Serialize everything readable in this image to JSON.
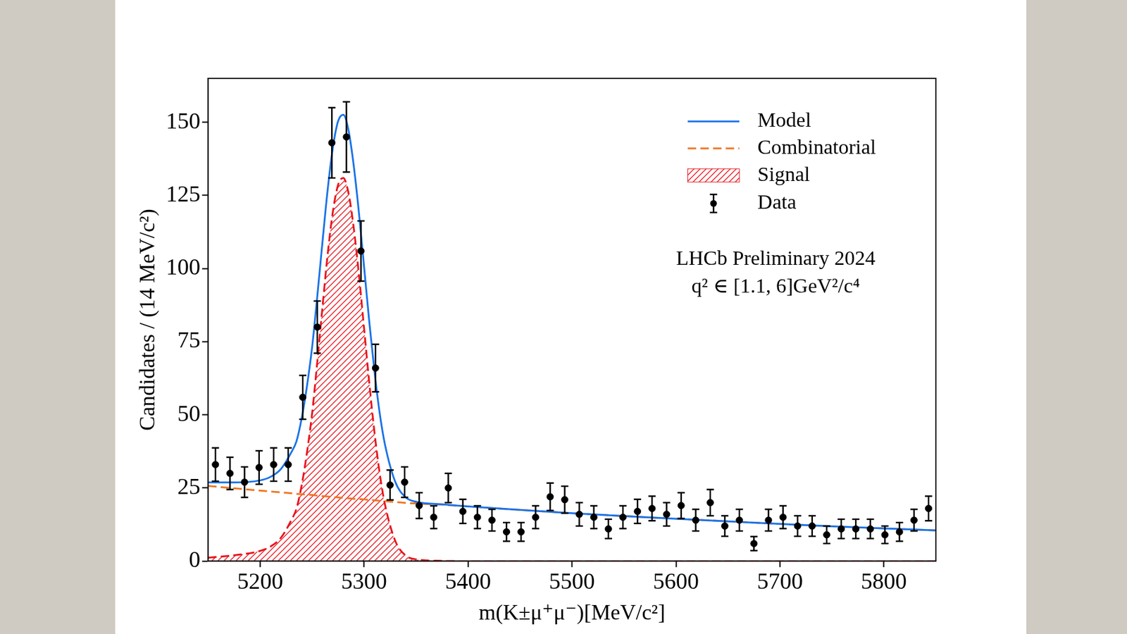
{
  "chart_data": {
    "type": "scatter",
    "x_label": "m(K±μ⁺μ⁻)[MeV/c²]",
    "y_label": "Candidates / (14 MeV/c²)",
    "xlim": [
      5150,
      5850
    ],
    "xticks": [
      5200,
      5300,
      5400,
      5500,
      5600,
      5700,
      5800
    ],
    "ylim": [
      0,
      165
    ],
    "yticks": [
      0,
      25,
      50,
      75,
      100,
      125,
      150
    ],
    "grid": false,
    "legend": "upper right",
    "annotations": [
      "LHCb Preliminary 2024",
      "q² ∈ [1.1, 6]GeV²/c⁴"
    ],
    "series": [
      {
        "name": "Model",
        "type": "line",
        "color": "#1a73e8",
        "line_style": "solid",
        "x": [
          5150,
          5175,
          5200,
          5210,
          5220,
          5230,
          5235,
          5240,
          5245,
          5250,
          5255,
          5260,
          5265,
          5270,
          5275,
          5280,
          5285,
          5290,
          5295,
          5300,
          5305,
          5310,
          5315,
          5320,
          5330,
          5340,
          5350,
          5375,
          5400,
          5450,
          5500,
          5550,
          5600,
          5650,
          5700,
          5750,
          5800,
          5850
        ],
        "values": [
          26.9,
          26.9,
          27.6,
          28.8,
          31.5,
          37.2,
          41.0,
          48.9,
          59.7,
          73.1,
          90.6,
          109.2,
          127.1,
          141.4,
          150.4,
          152.6,
          147.3,
          135.3,
          119.2,
          100.6,
          81.8,
          64.8,
          50.6,
          40.0,
          27.1,
          21.8,
          20.3,
          19.4,
          18.7,
          17.5,
          16.4,
          15.4,
          14.5,
          13.6,
          12.7,
          11.9,
          11.2,
          10.5
        ]
      },
      {
        "name": "Combinatorial",
        "type": "line",
        "color": "#f07522",
        "line_style": "dashed",
        "x": [
          5150,
          5175,
          5200,
          5210,
          5220,
          5230,
          5235,
          5240,
          5245,
          5250,
          5255,
          5260,
          5265,
          5270,
          5275,
          5280,
          5285,
          5290,
          5295,
          5300,
          5305,
          5310,
          5315,
          5320,
          5330,
          5340,
          5350,
          5375,
          5400,
          5450,
          5500,
          5550,
          5600,
          5650,
          5700,
          5750,
          5800,
          5850
        ],
        "values": [
          25.7,
          24.9,
          24.1,
          23.8,
          23.5,
          23.2,
          23.0,
          22.9,
          22.7,
          22.6,
          22.4,
          22.2,
          22.1,
          21.9,
          21.8,
          21.6,
          21.5,
          21.3,
          21.2,
          21.1,
          20.9,
          20.8,
          20.6,
          20.5,
          20.2,
          19.9,
          19.7,
          19.3,
          18.7,
          17.5,
          16.4,
          15.4,
          14.5,
          13.6,
          12.7,
          11.9,
          11.2,
          10.5
        ]
      },
      {
        "name": "Signal",
        "type": "area",
        "color": "#e8141c",
        "line_style": "dashed",
        "x": [
          5150,
          5175,
          5200,
          5210,
          5220,
          5230,
          5235,
          5240,
          5245,
          5250,
          5255,
          5260,
          5265,
          5270,
          5275,
          5280,
          5285,
          5290,
          5295,
          5300,
          5305,
          5310,
          5315,
          5320,
          5330,
          5340,
          5350,
          5375,
          5400,
          5450,
          5500,
          5550,
          5600,
          5650,
          5700,
          5750,
          5800,
          5850
        ],
        "values": [
          1.2,
          2,
          3.5,
          5,
          8,
          14,
          18,
          26,
          37,
          50.5,
          68.2,
          87,
          105,
          119.5,
          128.6,
          131,
          125.8,
          114,
          98,
          79.5,
          60.9,
          44,
          30,
          19.5,
          6.9,
          1.9,
          0.6,
          0.1,
          0,
          0,
          0,
          0,
          0,
          0,
          0,
          0,
          0,
          0
        ]
      },
      {
        "name": "Data",
        "type": "scatter",
        "color": "#000000",
        "marker": "circle",
        "x": [
          5157,
          5171,
          5185,
          5199,
          5213,
          5227,
          5241,
          5255,
          5269,
          5283,
          5297,
          5311,
          5325,
          5339,
          5353,
          5367,
          5381,
          5395,
          5409,
          5423,
          5437,
          5451,
          5465,
          5479,
          5493,
          5507,
          5521,
          5535,
          5549,
          5563,
          5577,
          5591,
          5605,
          5619,
          5633,
          5647,
          5661,
          5675,
          5689,
          5703,
          5717,
          5731,
          5745,
          5759,
          5773,
          5787,
          5801,
          5815,
          5829,
          5843
        ],
        "values": [
          33,
          30,
          27,
          32,
          33,
          33,
          56,
          80,
          143,
          145,
          106,
          66,
          26,
          27,
          19,
          15,
          25,
          17,
          15,
          14,
          10,
          10,
          15,
          22,
          21,
          16,
          15,
          11,
          15,
          17,
          18,
          16,
          19,
          14,
          20,
          12,
          14,
          6,
          14,
          15,
          12,
          12,
          9,
          11,
          11,
          11,
          9,
          10,
          14,
          18
        ],
        "errors": [
          5.7,
          5.5,
          5.2,
          5.7,
          5.7,
          5.7,
          7.5,
          8.9,
          12,
          12,
          10.3,
          8.1,
          5.1,
          5.2,
          4.4,
          3.9,
          5,
          4.1,
          3.9,
          3.7,
          3.2,
          3.2,
          3.9,
          4.7,
          4.6,
          4,
          3.9,
          3.3,
          3.9,
          4.1,
          4.2,
          4,
          4.4,
          3.7,
          4.5,
          3.5,
          3.7,
          2.4,
          3.7,
          3.9,
          3.5,
          3.5,
          3,
          3.3,
          3.3,
          3.3,
          3,
          3.2,
          3.7,
          4.2
        ]
      }
    ]
  }
}
